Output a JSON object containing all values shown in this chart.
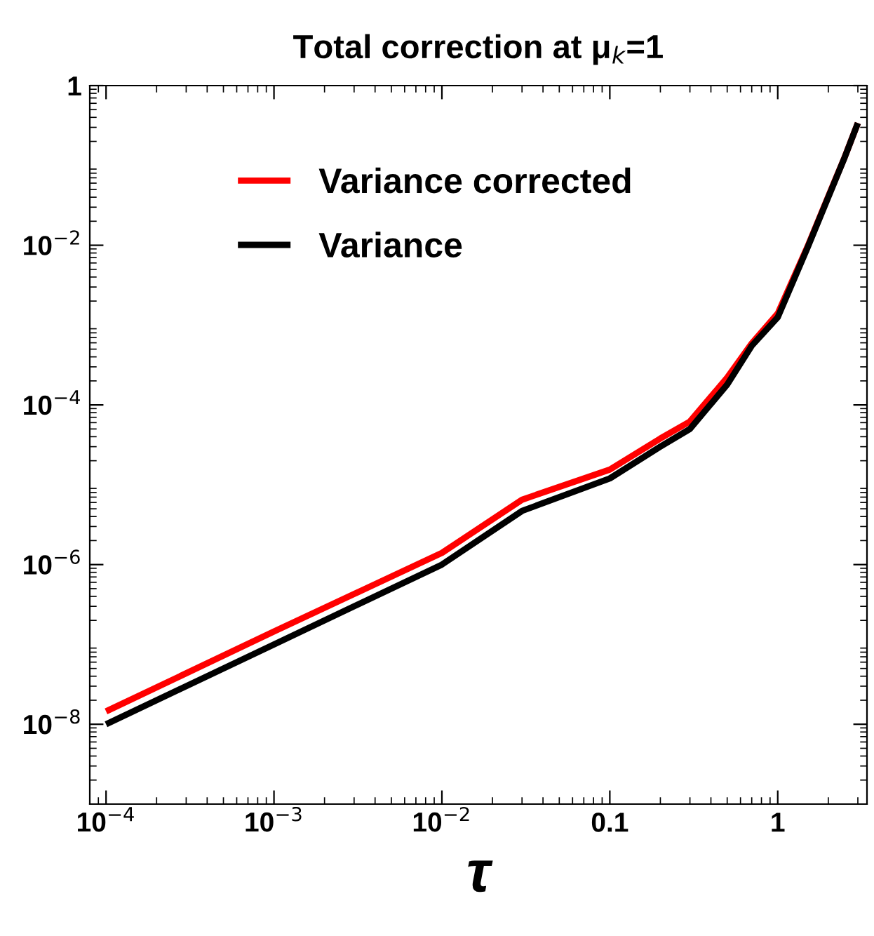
{
  "chart_data": {
    "type": "line",
    "title": "Total correction at μ$_{k}$=1",
    "xlabel": "τ",
    "log": "xy",
    "grid": false,
    "legend": "top left",
    "marker": "none",
    "line_style": "solid",
    "xlim": [
      8e-05,
      3.4
    ],
    "ylim": [
      1e-09,
      1
    ],
    "xticks": [
      {
        "value": 0.0001,
        "label": "10$^{−4}$"
      },
      {
        "value": 0.001,
        "label": "10$^{−3}$"
      },
      {
        "value": 0.01,
        "label": "10$^{−2}$"
      },
      {
        "value": 0.1,
        "label": "0.1"
      },
      {
        "value": 1,
        "label": "1"
      }
    ],
    "yticks": [
      {
        "value": 1e-08,
        "label": "10$^{−8}$"
      },
      {
        "value": 1e-06,
        "label": "10$^{−6}$"
      },
      {
        "value": 0.0001,
        "label": "10$^{−4}$"
      },
      {
        "value": 0.01,
        "label": "10$^{−2}$"
      },
      {
        "value": 1,
        "label": "1"
      }
    ],
    "series": [
      {
        "name": "Variance corrected",
        "color": "#ff0000",
        "x": [
          0.0001,
          0.001,
          0.01,
          0.03,
          0.1,
          0.2,
          0.3,
          0.5,
          0.7,
          1,
          1.5,
          2,
          2.5,
          3
        ],
        "values": [
          1.45e-08,
          1.45e-07,
          1.4e-06,
          6.5e-06,
          1.55e-05,
          3.8e-05,
          6.2e-05,
          0.00022,
          0.00059,
          0.0014,
          0.0095,
          0.041,
          0.126,
          0.34
        ]
      },
      {
        "name": "Variance",
        "color": "#000000",
        "x": [
          0.0001,
          0.001,
          0.01,
          0.03,
          0.1,
          0.2,
          0.3,
          0.5,
          0.7,
          1,
          1.5,
          2,
          2.5,
          3
        ],
        "values": [
          1e-08,
          1e-07,
          1e-06,
          4.7e-06,
          1.2e-05,
          3e-05,
          5e-05,
          0.00018,
          0.00055,
          0.00125,
          0.0092,
          0.04,
          0.125,
          0.34
        ]
      }
    ]
  }
}
